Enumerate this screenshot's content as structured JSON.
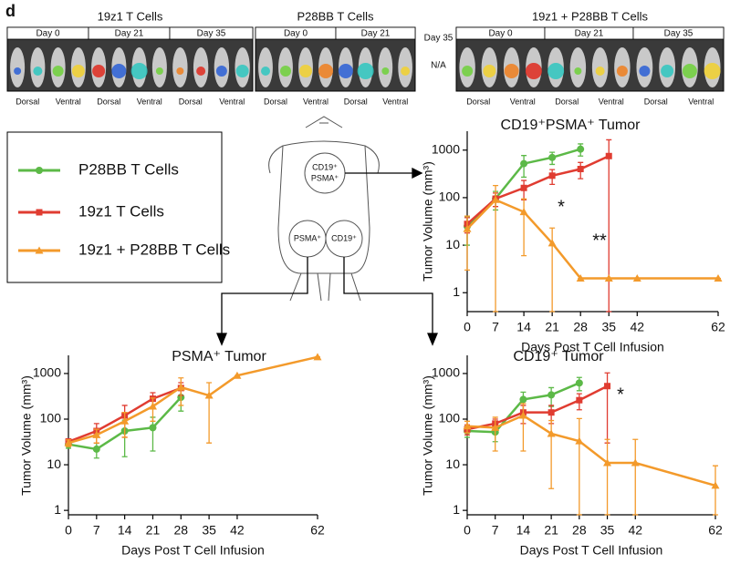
{
  "panel_label": "d",
  "imaging": [
    {
      "title": "19z1 T Cells",
      "days": [
        "Day 0",
        "Day 21",
        "Day 35"
      ],
      "views": [
        "Dorsal",
        "Ventral",
        "Dorsal",
        "Ventral",
        "Dorsal",
        "Ventral"
      ]
    },
    {
      "title": "P28BB T Cells",
      "days": [
        "Day 0",
        "Day 21",
        "Day 35"
      ],
      "note": "N/A",
      "views": [
        "Dorsal",
        "Ventral",
        "Dorsal",
        "Ventral"
      ]
    },
    {
      "title": "19z1 + P28BB T Cells",
      "days": [
        "Day 0",
        "Day 21",
        "Day 35"
      ],
      "views": [
        "Dorsal",
        "Ventral",
        "Dorsal",
        "Ventral",
        "Dorsal",
        "Ventral"
      ]
    }
  ],
  "diagram": {
    "labels": [
      "CD19⁺",
      "PSMA⁺",
      "PSMA⁺",
      "CD19⁺"
    ]
  },
  "chart_data": [
    {
      "type": "line",
      "title": "CD19⁺PSMA⁺ Tumor",
      "x_label": "Days Post T Cell Infusion",
      "y_label": "Tumor Volume (mm³)",
      "log_y": true,
      "xlim": [
        0,
        62
      ],
      "ylim": [
        0.4,
        2500
      ],
      "xticks": [
        0,
        7,
        14,
        21,
        28,
        35,
        42,
        62
      ],
      "yticks": [
        1,
        10,
        100,
        1000
      ],
      "annotations": [
        "*",
        "**"
      ],
      "series": [
        {
          "name": "P28BB T Cells",
          "color": "#5cb947",
          "marker": "circle",
          "x": [
            0,
            7,
            14,
            21,
            28
          ],
          "values": [
            25,
            95,
            520,
            700,
            1050
          ],
          "errors": [
            15,
            40,
            250,
            200,
            300
          ]
        },
        {
          "name": "19z1 T Cells",
          "color": "#e03c31",
          "marker": "square",
          "x": [
            0,
            7,
            14,
            21,
            28,
            35
          ],
          "values": [
            28,
            95,
            160,
            290,
            400,
            750
          ],
          "errors": [
            10,
            30,
            70,
            100,
            150,
            900
          ]
        },
        {
          "name": "19z1 + P28BB T Cells",
          "color": "#f39a2b",
          "marker": "triangle",
          "x": [
            0,
            7,
            14,
            21,
            28,
            35,
            42,
            62
          ],
          "values": [
            22,
            90,
            50,
            11,
            2,
            2,
            2,
            2
          ],
          "errors": [
            19,
            90,
            44,
            12,
            0,
            0,
            0,
            0
          ]
        }
      ]
    },
    {
      "type": "line",
      "title": "PSMA⁺ Tumor",
      "x_label": "Days Post T Cell Infusion",
      "y_label": "Tumor Volume (mm³)",
      "log_y": true,
      "xlim": [
        0,
        62
      ],
      "ylim": [
        0.8,
        2500
      ],
      "xticks": [
        0,
        7,
        14,
        21,
        28,
        35,
        42,
        62
      ],
      "yticks": [
        1,
        10,
        100,
        1000
      ],
      "series": [
        {
          "name": "P28BB T Cells",
          "color": "#5cb947",
          "marker": "circle",
          "x": [
            0,
            7,
            14,
            21,
            28
          ],
          "values": [
            28,
            22,
            55,
            65,
            300
          ],
          "errors": [
            5,
            8,
            40,
            45,
            150
          ]
        },
        {
          "name": "19z1 T Cells",
          "color": "#e03c31",
          "marker": "square",
          "x": [
            0,
            7,
            14,
            21,
            28
          ],
          "values": [
            32,
            55,
            120,
            280,
            480
          ],
          "errors": [
            5,
            25,
            80,
            100,
            150
          ]
        },
        {
          "name": "19z1 + P28BB T Cells",
          "color": "#f39a2b",
          "marker": "triangle",
          "x": [
            0,
            7,
            14,
            21,
            28,
            35,
            42,
            62
          ],
          "values": [
            30,
            45,
            90,
            190,
            500,
            330,
            900,
            2300
          ],
          "errors": [
            5,
            15,
            50,
            100,
            300,
            300,
            0,
            0
          ]
        }
      ]
    },
    {
      "type": "line",
      "title": "CD19⁺ Tumor",
      "x_label": "Days Post T Cell Infusion",
      "y_label": "Tumor Volume (mm³)",
      "log_y": true,
      "xlim": [
        0,
        62
      ],
      "ylim": [
        0.8,
        2500
      ],
      "xticks": [
        0,
        7,
        14,
        21,
        28,
        35,
        42,
        62
      ],
      "yticks": [
        1,
        10,
        100,
        1000
      ],
      "annotations": [
        "*"
      ],
      "series": [
        {
          "name": "P28BB T Cells",
          "color": "#5cb947",
          "marker": "circle",
          "x": [
            0,
            7,
            14,
            21,
            28
          ],
          "values": [
            55,
            52,
            270,
            340,
            620
          ],
          "errors": [
            15,
            20,
            120,
            150,
            200
          ]
        },
        {
          "name": "19z1 T Cells",
          "color": "#e03c31",
          "marker": "square",
          "x": [
            0,
            7,
            14,
            21,
            28,
            35
          ],
          "values": [
            60,
            80,
            140,
            140,
            260,
            530
          ],
          "errors": [
            15,
            20,
            60,
            60,
            100,
            500
          ]
        },
        {
          "name": "19z1 + P28BB T Cells",
          "color": "#f39a2b",
          "marker": "triangle",
          "x": [
            0,
            7,
            14,
            21,
            28,
            35,
            42,
            62
          ],
          "values": [
            70,
            65,
            120,
            48,
            33,
            11,
            11,
            3.5
          ],
          "errors": [
            20,
            45,
            100,
            45,
            70,
            25,
            25,
            6
          ]
        }
      ]
    }
  ]
}
